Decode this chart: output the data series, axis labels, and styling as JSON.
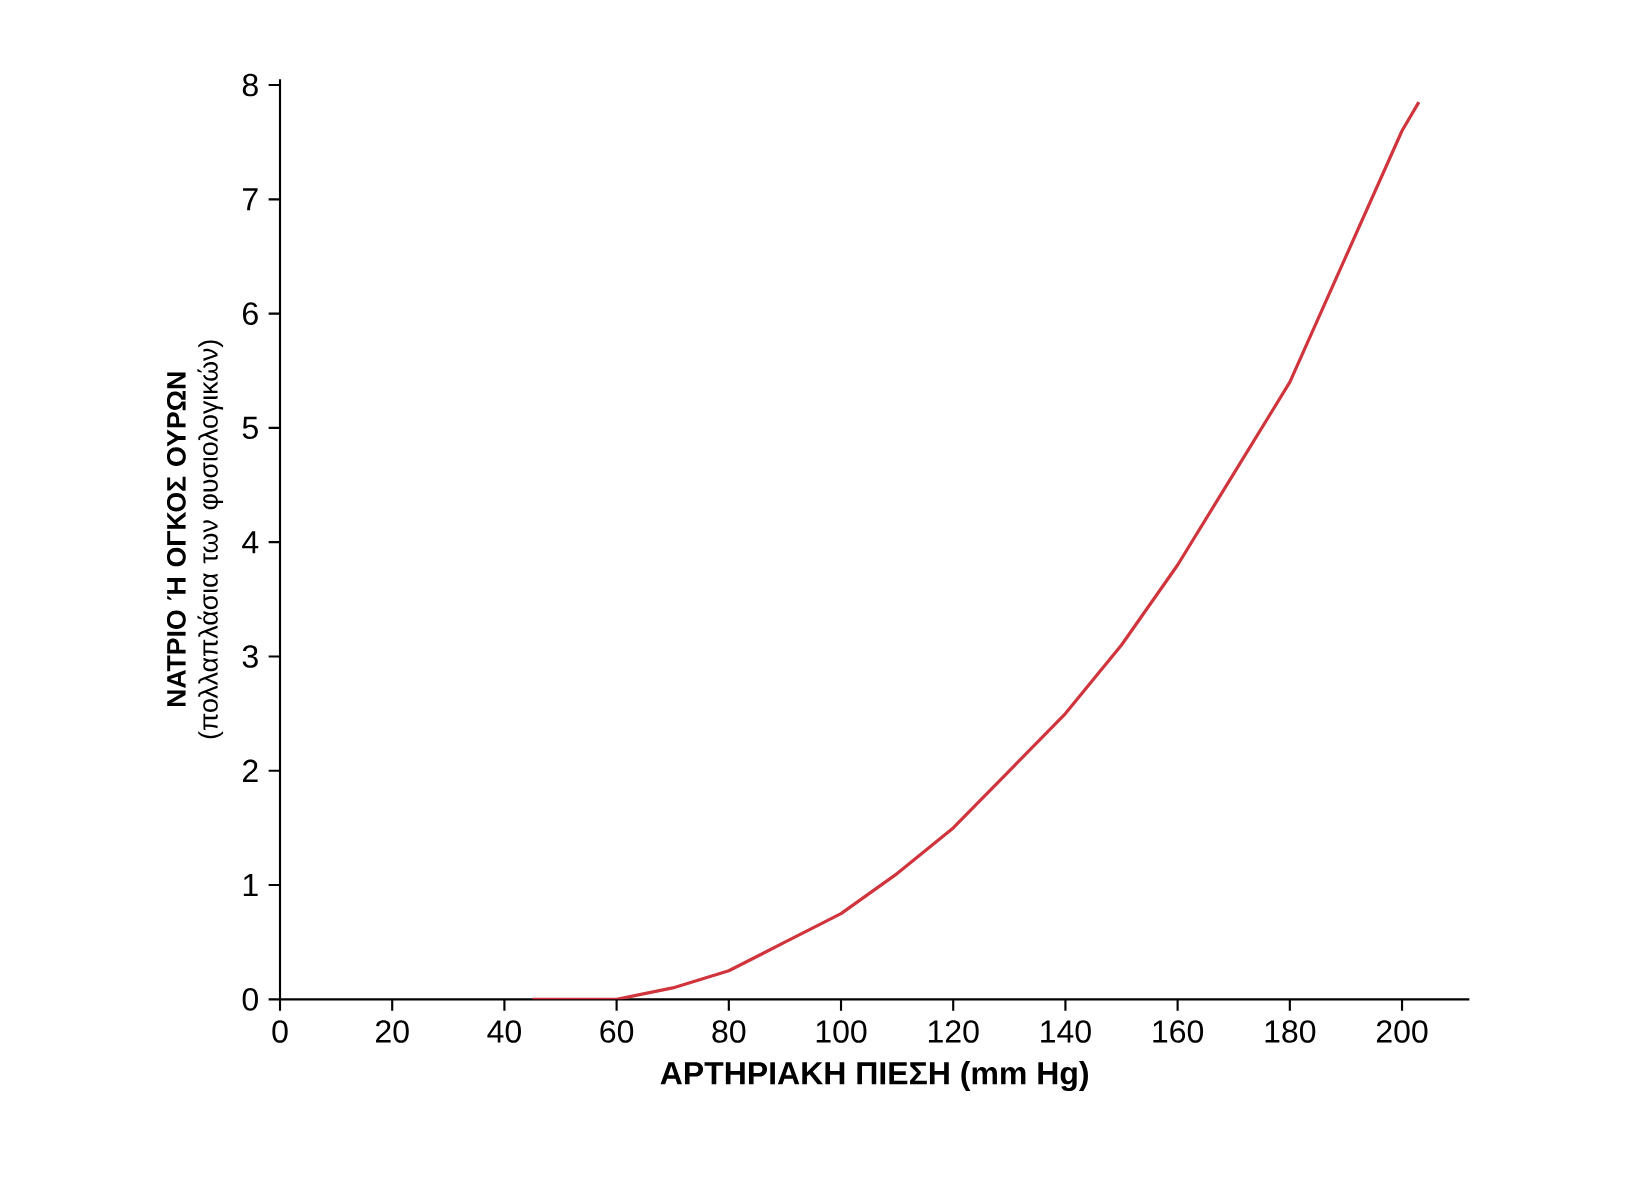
{
  "chart_data": {
    "type": "line",
    "xlabel": "ΑΡΤΗΡΙΑΚΗ ΠΙΕΣΗ (mm Hg)",
    "ylabel": "**ΝΑΤΡΙΟ Ή ΟΓΚΟΣ ΟΥΡΩΝ** (πολλαπλάσια των φυσιολογικών)",
    "x": [
      45,
      50,
      55,
      60,
      70,
      80,
      90,
      100,
      110,
      120,
      130,
      140,
      150,
      160,
      170,
      180,
      190,
      200,
      203
    ],
    "series": [
      {
        "color": "#d0343c",
        "values": [
          0,
          0,
          0,
          0,
          0.1,
          0.25,
          0.5,
          0.75,
          1.1,
          1.5,
          2.0,
          2.5,
          3.1,
          3.8,
          4.6,
          5.4,
          6.5,
          7.6,
          7.85
        ]
      }
    ],
    "xlim": [
      0,
      212
    ],
    "ylim": [
      0,
      8.05
    ],
    "xticks": [
      0,
      20,
      40,
      60,
      80,
      100,
      120,
      140,
      160,
      180,
      200
    ],
    "yticks": [
      0,
      1,
      2,
      3,
      4,
      5,
      6,
      7,
      8
    ],
    "marker": "none",
    "line_style": "solid"
  }
}
